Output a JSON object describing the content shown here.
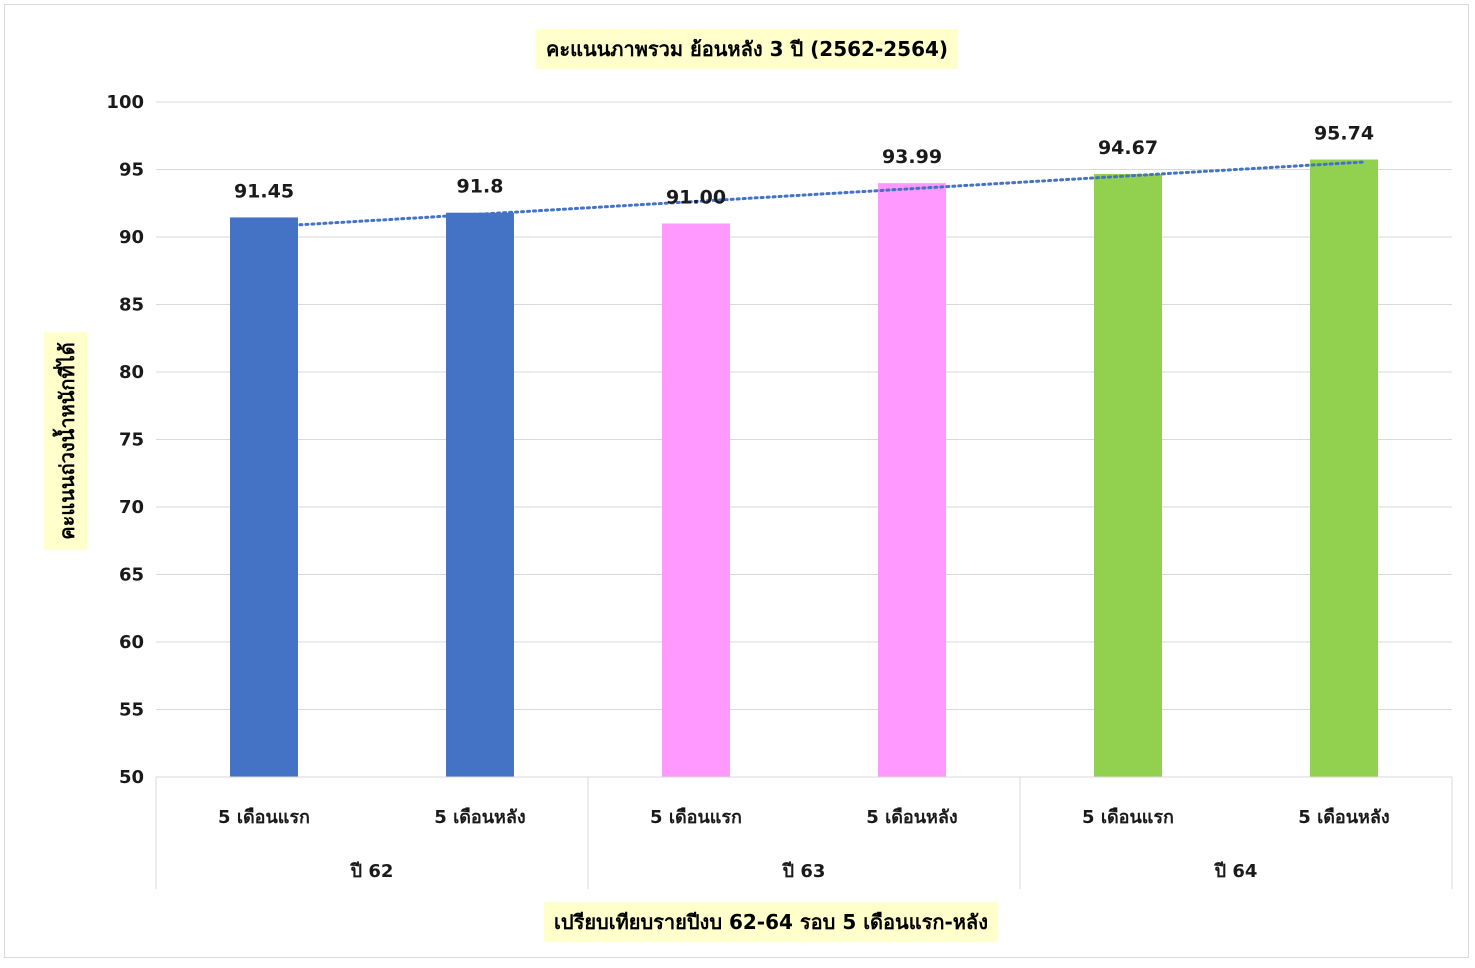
{
  "chart_data": {
    "type": "bar",
    "title": "คะแนนภาพรวม ย้อนหลัง 3 ปี (2562-2564)",
    "xlabel": "เปรียบเทียบรายปีงบ 62-64 รอบ 5 เดือนแรก-หลัง",
    "ylabel": "คะแนนถ่วงน้ำหนักที่ได้",
    "ylim": [
      50,
      100
    ],
    "yticks": [
      50,
      55,
      60,
      65,
      70,
      75,
      80,
      85,
      90,
      95,
      100
    ],
    "grid": true,
    "legend": "none",
    "trendline": {
      "type": "linear",
      "style": "dotted",
      "color": "#4472C4"
    },
    "categories": [
      "5 เดือนแรก",
      "5 เดือนหลัง",
      "5 เดือนแรก",
      "5 เดือนหลัง",
      "5 เดือนแรก",
      "5 เดือนหลัง"
    ],
    "groups": [
      {
        "label": "ปี 62",
        "span": 2
      },
      {
        "label": "ปี 63",
        "span": 2
      },
      {
        "label": "ปี 64",
        "span": 2
      }
    ],
    "values": [
      91.45,
      91.8,
      91.0,
      93.99,
      94.67,
      95.74
    ],
    "value_labels": [
      "91.45",
      "91.8",
      "91.00",
      "93.99",
      "94.67",
      "95.74"
    ],
    "bar_colors": [
      "#4472C4",
      "#4472C4",
      "#FF99FF",
      "#FF99FF",
      "#92D050",
      "#92D050"
    ],
    "title_bg": "#FFFFCC"
  }
}
